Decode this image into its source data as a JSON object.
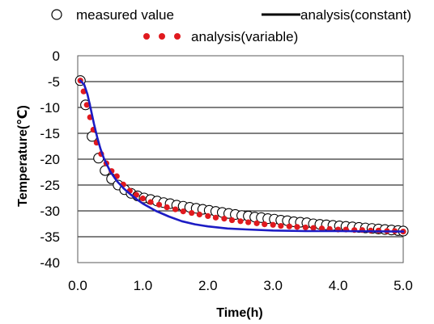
{
  "chart_data": {
    "type": "scatter",
    "xlabel": "Time(h)",
    "ylabel": "Temperature(℃)",
    "xlim": [
      0,
      5
    ],
    "ylim": [
      -40,
      0
    ],
    "x_ticks": [
      "0.0",
      "1.0",
      "2.0",
      "3.0",
      "4.0",
      "5.0"
    ],
    "y_ticks": [
      "0",
      "-5",
      "-10",
      "-15",
      "-20",
      "-25",
      "-30",
      "-35",
      "-40"
    ],
    "grid": "horizontal",
    "legend_position": "top",
    "series": [
      {
        "name": "measured value",
        "style": "open-circle",
        "color": "#000000",
        "points": [
          [
            0.04,
            -4.8
          ],
          [
            0.12,
            -9.5
          ],
          [
            0.22,
            -15.6
          ],
          [
            0.32,
            -19.8
          ],
          [
            0.42,
            -22.2
          ],
          [
            0.52,
            -23.8
          ],
          [
            0.62,
            -25.0
          ],
          [
            0.72,
            -25.9
          ],
          [
            0.82,
            -26.6
          ],
          [
            0.92,
            -27.1
          ],
          [
            1.02,
            -27.5
          ],
          [
            1.12,
            -27.8
          ],
          [
            1.22,
            -28.1
          ],
          [
            1.32,
            -28.4
          ],
          [
            1.42,
            -28.6
          ],
          [
            1.52,
            -28.9
          ],
          [
            1.62,
            -29.1
          ],
          [
            1.72,
            -29.3
          ],
          [
            1.82,
            -29.5
          ],
          [
            1.92,
            -29.7
          ],
          [
            2.02,
            -29.9
          ],
          [
            2.12,
            -30.1
          ],
          [
            2.22,
            -30.3
          ],
          [
            2.32,
            -30.5
          ],
          [
            2.42,
            -30.7
          ],
          [
            2.52,
            -30.9
          ],
          [
            2.62,
            -31.0
          ],
          [
            2.72,
            -31.2
          ],
          [
            2.82,
            -31.3
          ],
          [
            2.92,
            -31.5
          ],
          [
            3.02,
            -31.6
          ],
          [
            3.12,
            -31.8
          ],
          [
            3.22,
            -31.9
          ],
          [
            3.32,
            -32.1
          ],
          [
            3.42,
            -32.2
          ],
          [
            3.52,
            -32.3
          ],
          [
            3.62,
            -32.5
          ],
          [
            3.72,
            -32.6
          ],
          [
            3.82,
            -32.7
          ],
          [
            3.92,
            -32.8
          ],
          [
            4.02,
            -32.9
          ],
          [
            4.12,
            -33.0
          ],
          [
            4.22,
            -33.1
          ],
          [
            4.32,
            -33.2
          ],
          [
            4.42,
            -33.3
          ],
          [
            4.52,
            -33.4
          ],
          [
            4.62,
            -33.5
          ],
          [
            4.72,
            -33.6
          ],
          [
            4.82,
            -33.7
          ],
          [
            4.92,
            -33.8
          ],
          [
            5.0,
            -33.9
          ]
        ]
      },
      {
        "name": "analysis(constant)",
        "style": "line",
        "color": "#1c1cc4",
        "points": [
          [
            0.04,
            -4.8
          ],
          [
            0.1,
            -5.6
          ],
          [
            0.15,
            -7.5
          ],
          [
            0.2,
            -10.3
          ],
          [
            0.25,
            -13.2
          ],
          [
            0.3,
            -15.8
          ],
          [
            0.35,
            -18.0
          ],
          [
            0.4,
            -19.8
          ],
          [
            0.5,
            -22.4
          ],
          [
            0.6,
            -24.2
          ],
          [
            0.7,
            -25.6
          ],
          [
            0.8,
            -26.7
          ],
          [
            0.9,
            -27.7
          ],
          [
            1.0,
            -28.6
          ],
          [
            1.2,
            -30.0
          ],
          [
            1.4,
            -31.1
          ],
          [
            1.6,
            -32.0
          ],
          [
            1.8,
            -32.6
          ],
          [
            2.0,
            -33.0
          ],
          [
            2.3,
            -33.4
          ],
          [
            2.6,
            -33.6
          ],
          [
            3.0,
            -33.8
          ],
          [
            3.5,
            -33.9
          ],
          [
            4.0,
            -33.9
          ],
          [
            5.0,
            -34.0
          ]
        ]
      },
      {
        "name": "analysis(variable)",
        "style": "dot",
        "color": "#e0191e",
        "points": [
          [
            0.04,
            -4.8
          ],
          [
            0.09,
            -6.9
          ],
          [
            0.14,
            -9.5
          ],
          [
            0.19,
            -11.9
          ],
          [
            0.24,
            -14.3
          ],
          [
            0.29,
            -16.8
          ],
          [
            0.36,
            -19.0
          ],
          [
            0.44,
            -20.8
          ],
          [
            0.52,
            -22.3
          ],
          [
            0.6,
            -23.3
          ],
          [
            0.7,
            -24.9
          ],
          [
            0.8,
            -26.1
          ],
          [
            0.9,
            -26.9
          ],
          [
            1.0,
            -27.6
          ],
          [
            1.12,
            -28.3
          ],
          [
            1.25,
            -28.8
          ],
          [
            1.37,
            -29.3
          ],
          [
            1.5,
            -29.7
          ],
          [
            1.62,
            -30.1
          ],
          [
            1.75,
            -30.4
          ],
          [
            1.87,
            -30.7
          ],
          [
            2.0,
            -31.0
          ],
          [
            2.12,
            -31.3
          ],
          [
            2.25,
            -31.5
          ],
          [
            2.37,
            -31.8
          ],
          [
            2.5,
            -32.0
          ],
          [
            2.62,
            -32.2
          ],
          [
            2.75,
            -32.4
          ],
          [
            2.87,
            -32.6
          ],
          [
            3.0,
            -32.7
          ],
          [
            3.12,
            -32.9
          ],
          [
            3.25,
            -33.0
          ],
          [
            3.37,
            -33.1
          ],
          [
            3.5,
            -33.2
          ],
          [
            3.62,
            -33.3
          ],
          [
            3.75,
            -33.4
          ],
          [
            3.87,
            -33.5
          ],
          [
            4.0,
            -33.6
          ],
          [
            4.12,
            -33.6
          ],
          [
            4.25,
            -33.7
          ],
          [
            4.37,
            -33.7
          ],
          [
            4.5,
            -33.8
          ],
          [
            4.62,
            -33.8
          ],
          [
            4.75,
            -33.9
          ],
          [
            4.87,
            -33.9
          ],
          [
            5.0,
            -34.0
          ]
        ]
      }
    ]
  }
}
